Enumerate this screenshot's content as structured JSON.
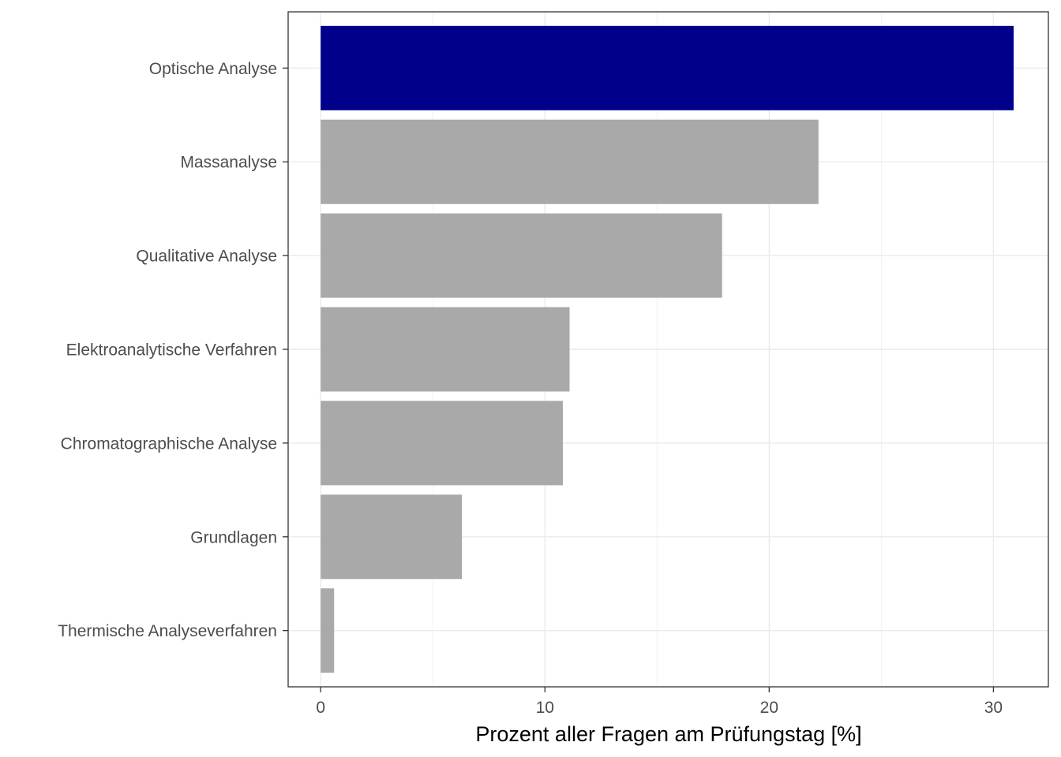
{
  "chart_data": {
    "type": "bar",
    "orientation": "horizontal",
    "categories": [
      "Optische Analyse",
      "Massanalyse",
      "Qualitative Analyse",
      "Elektroanalytische Verfahren",
      "Chromatographische Analyse",
      "Grundlagen",
      "Thermische Analyseverfahren"
    ],
    "values": [
      30.9,
      22.2,
      17.9,
      11.1,
      10.8,
      6.3,
      0.6
    ],
    "colors": [
      "#00008B",
      "#A9A9A9",
      "#A9A9A9",
      "#A9A9A9",
      "#A9A9A9",
      "#A9A9A9",
      "#A9A9A9"
    ],
    "xlabel": "Prozent aller Fragen am Prüfungstag [%]",
    "ylabel": "",
    "title": "",
    "xlim": [
      -1.45,
      32.45
    ],
    "xticks": [
      0,
      10,
      20,
      30
    ],
    "xtick_labels": [
      "0",
      "10",
      "20",
      "30"
    ],
    "grid": true,
    "theme": "bw"
  }
}
